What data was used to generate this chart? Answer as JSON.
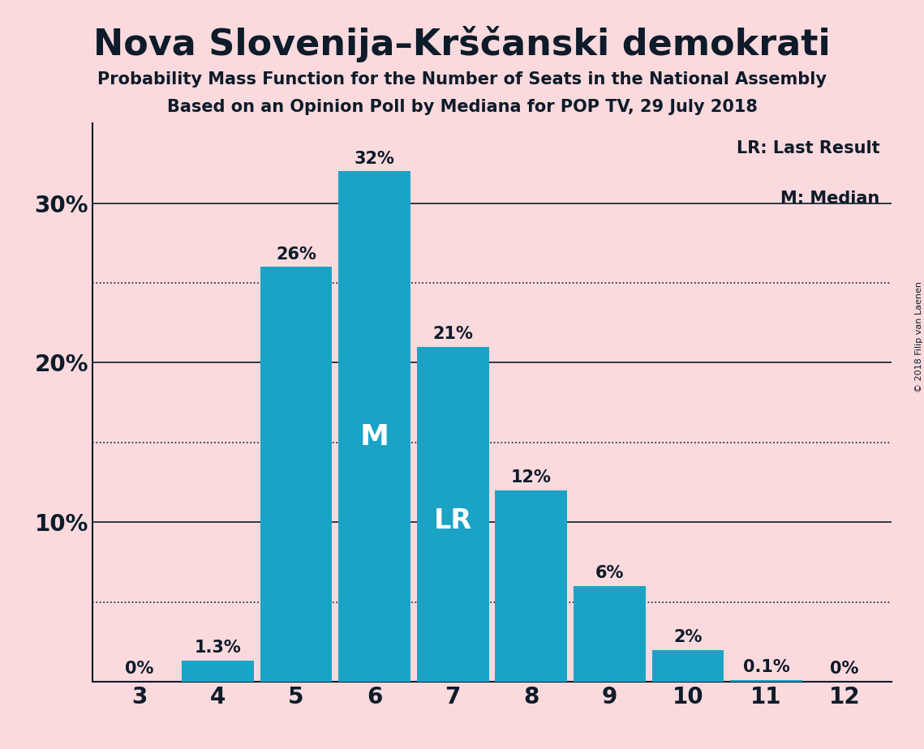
{
  "title": "Nova Slovenija–Krščanski demokrati",
  "subtitle1": "Probability Mass Function for the Number of Seats in the National Assembly",
  "subtitle2": "Based on an Opinion Poll by Mediana for POP TV, 29 July 2018",
  "copyright": "© 2018 Filip van Laenen",
  "categories": [
    3,
    4,
    5,
    6,
    7,
    8,
    9,
    10,
    11,
    12
  ],
  "values": [
    0.0,
    1.3,
    26.0,
    32.0,
    21.0,
    12.0,
    6.0,
    2.0,
    0.1,
    0.0
  ],
  "labels": [
    "0%",
    "1.3%",
    "26%",
    "32%",
    "21%",
    "12%",
    "6%",
    "2%",
    "0.1%",
    "0%"
  ],
  "bar_color": "#1BA3C6",
  "background_color": "#FADADD",
  "text_color": "#0D1B2A",
  "median_bar": 6,
  "lr_bar": 7,
  "solid_lines": [
    10,
    20,
    30
  ],
  "dotted_lines": [
    5,
    15,
    25
  ],
  "ylim": [
    0,
    35
  ],
  "legend_lr": "LR: Last Result",
  "legend_m": "M: Median",
  "bar_width": 0.92
}
